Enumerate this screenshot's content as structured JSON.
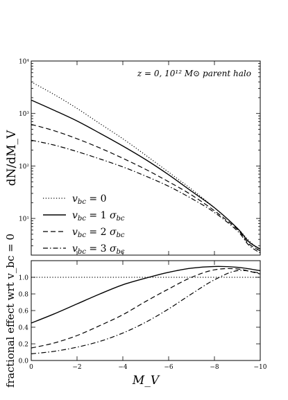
{
  "chart_data": [
    {
      "type": "line",
      "panel": "top",
      "annotation": "z = 0, 10¹² M⊙ parent halo",
      "ylabel": "dN/dM_V",
      "y_scale": "log",
      "ylim": [
        2,
        10000
      ],
      "xlim": [
        0,
        -10
      ],
      "y_ticks": [
        {
          "value": 10,
          "label": "10¹"
        },
        {
          "value": 100,
          "label": "10²"
        },
        {
          "value": 1000,
          "label": "10³"
        },
        {
          "value": 10000,
          "label": "10⁴"
        }
      ],
      "legend_position": "lower-left",
      "x": [
        0,
        -1,
        -2,
        -3,
        -4,
        -5,
        -6,
        -7,
        -8,
        -9,
        -9.5,
        -10
      ],
      "series": [
        {
          "name": "v_bc = 0",
          "style": "dotted",
          "values": [
            4000,
            2300,
            1250,
            640,
            330,
            160,
            76,
            36,
            16,
            6.5,
            3.8,
            2.4
          ]
        },
        {
          "name": "v_bc = 1 σ_bc",
          "style": "solid",
          "values": [
            1800,
            1150,
            720,
            420,
            240,
            132,
            68,
            33,
            16,
            6.5,
            3.6,
            2.6
          ]
        },
        {
          "name": "v_bc = 2 σ_bc",
          "style": "dashed",
          "values": [
            620,
            470,
            330,
            220,
            140,
            86,
            50,
            28,
            14,
            6.2,
            3.3,
            2.4
          ]
        },
        {
          "name": "v_bc = 3 σ_bc",
          "style": "dashdot",
          "values": [
            310,
            250,
            188,
            136,
            96,
            64,
            41,
            24,
            13,
            5.8,
            3.1,
            2.2
          ]
        }
      ]
    },
    {
      "type": "line",
      "panel": "bottom",
      "xlabel": "M_V",
      "ylabel": "fractional effect wrt v_bc = 0",
      "xlim": [
        0,
        -10
      ],
      "ylim": [
        0,
        1.2
      ],
      "x_ticks": [
        {
          "value": 0,
          "label": "0"
        },
        {
          "value": -2,
          "label": "−2"
        },
        {
          "value": -4,
          "label": "−4"
        },
        {
          "value": -6,
          "label": "−6"
        },
        {
          "value": -8,
          "label": "−8"
        },
        {
          "value": -10,
          "label": "−10"
        }
      ],
      "y_ticks": [
        {
          "value": 0.0,
          "label": "0.0"
        },
        {
          "value": 0.2,
          "label": "0.2"
        },
        {
          "value": 0.4,
          "label": "0.4"
        },
        {
          "value": 0.6,
          "label": "0.6"
        },
        {
          "value": 0.8,
          "label": "0.8"
        },
        {
          "value": 1.0,
          "label": "1.0"
        }
      ],
      "x": [
        0,
        -1,
        -2,
        -3,
        -4,
        -5,
        -6,
        -7,
        -8,
        -9,
        -10
      ],
      "series": [
        {
          "style": "dotted",
          "values": [
            1.0,
            1.0,
            1.0,
            1.0,
            1.0,
            1.0,
            1.0,
            1.0,
            1.0,
            1.0,
            1.0
          ]
        },
        {
          "style": "solid",
          "values": [
            0.45,
            0.56,
            0.68,
            0.8,
            0.91,
            0.99,
            1.06,
            1.11,
            1.13,
            1.12,
            1.08
          ]
        },
        {
          "style": "dashed",
          "values": [
            0.15,
            0.21,
            0.3,
            0.42,
            0.55,
            0.71,
            0.86,
            1.0,
            1.09,
            1.1,
            1.04
          ]
        },
        {
          "style": "dashdot",
          "values": [
            0.08,
            0.11,
            0.16,
            0.23,
            0.33,
            0.46,
            0.62,
            0.8,
            0.97,
            1.08,
            1.05
          ]
        }
      ]
    }
  ]
}
